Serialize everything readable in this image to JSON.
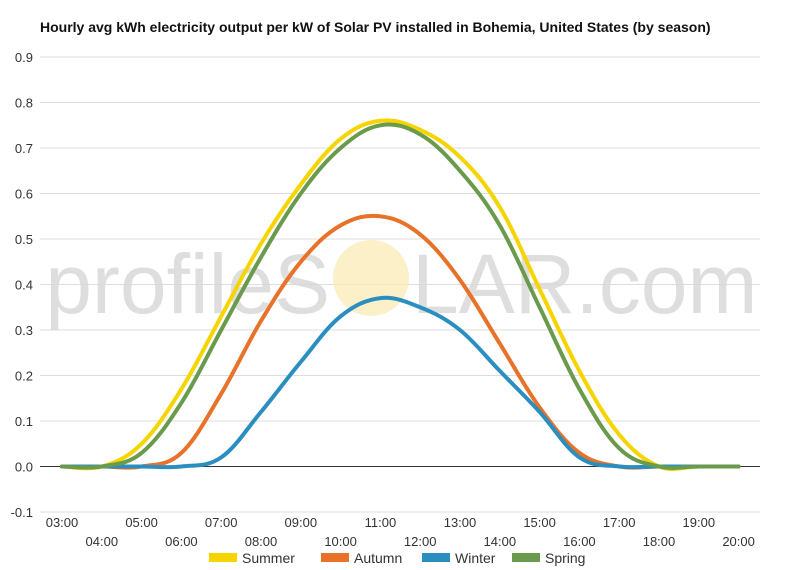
{
  "chart_data": {
    "type": "line",
    "title": "Hourly avg kWh electricity output per kW of Solar PV installed in Bohemia, United States (by season)",
    "xlabel": "",
    "ylabel": "",
    "x": [
      "03:00",
      "04:00",
      "05:00",
      "06:00",
      "07:00",
      "08:00",
      "09:00",
      "10:00",
      "11:00",
      "12:00",
      "13:00",
      "14:00",
      "15:00",
      "16:00",
      "17:00",
      "18:00",
      "19:00",
      "20:00"
    ],
    "ylim": [
      -0.1,
      0.9
    ],
    "yticks": [
      "0.9",
      "0.8",
      "0.7",
      "0.6",
      "0.5",
      "0.4",
      "0.3",
      "0.2",
      "0.1",
      "0.0",
      "-0.1"
    ],
    "grid": true,
    "legend_position": "bottom",
    "series": [
      {
        "name": "Summer",
        "color": "#f5d400",
        "values": [
          0.0,
          0.0,
          0.05,
          0.17,
          0.33,
          0.49,
          0.62,
          0.72,
          0.76,
          0.74,
          0.68,
          0.57,
          0.39,
          0.21,
          0.07,
          0.0,
          0.0,
          0.0
        ]
      },
      {
        "name": "Autumn",
        "color": "#e8722a",
        "values": [
          0.0,
          0.0,
          0.0,
          0.03,
          0.16,
          0.32,
          0.45,
          0.53,
          0.55,
          0.51,
          0.41,
          0.27,
          0.13,
          0.03,
          0.0,
          0.0,
          0.0,
          0.0
        ]
      },
      {
        "name": "Winter",
        "color": "#2a8fc0",
        "values": [
          0.0,
          0.0,
          0.0,
          0.0,
          0.02,
          0.12,
          0.23,
          0.33,
          0.37,
          0.35,
          0.3,
          0.21,
          0.12,
          0.02,
          0.0,
          0.0,
          0.0,
          0.0
        ]
      },
      {
        "name": "Spring",
        "color": "#6a9a4b",
        "values": [
          0.0,
          0.0,
          0.03,
          0.14,
          0.3,
          0.46,
          0.6,
          0.7,
          0.75,
          0.73,
          0.65,
          0.53,
          0.35,
          0.17,
          0.04,
          0.0,
          0.0,
          0.0
        ]
      }
    ]
  },
  "watermark": {
    "text_before": "profileS",
    "text_after": "LAR.com"
  }
}
